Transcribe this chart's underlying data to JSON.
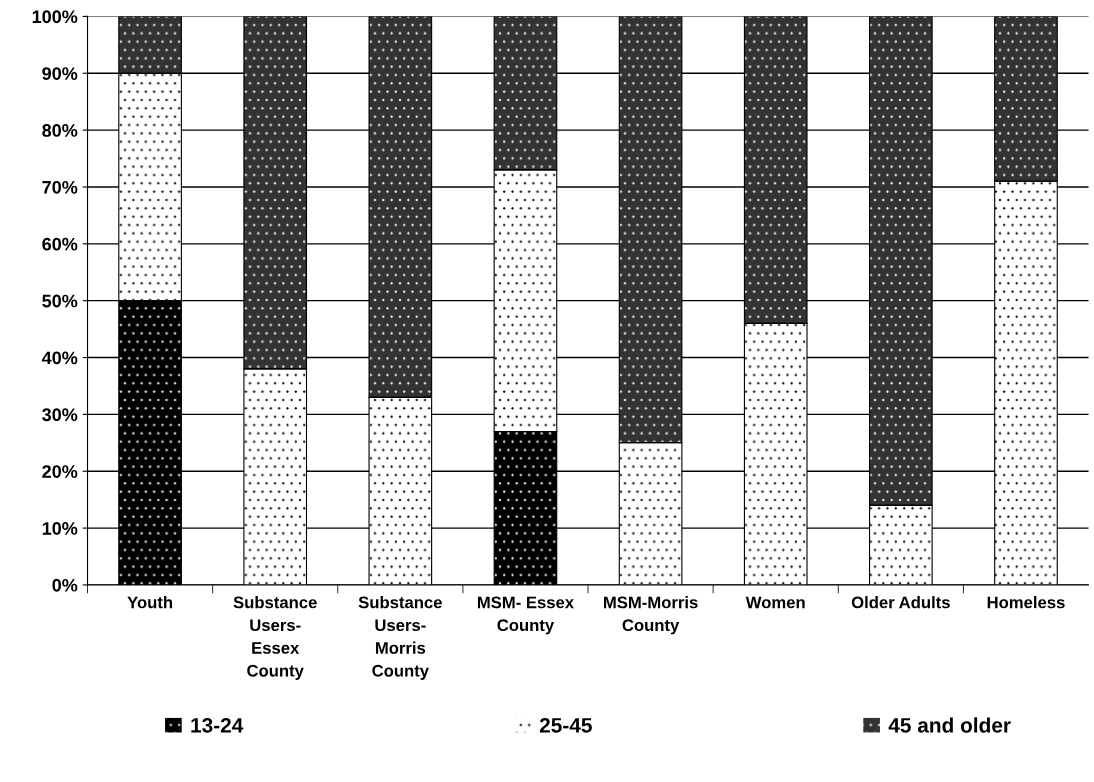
{
  "chart_data": {
    "type": "bar",
    "stacked": true,
    "categories": [
      "Youth",
      "Substance Users-Essex County",
      "Substance Users-Morris County",
      "MSM- Essex County",
      "MSM-Morris County",
      "Women",
      "Older Adults",
      "Homeless"
    ],
    "series": [
      {
        "name": "13-24",
        "color": "#000000",
        "values": [
          50,
          0,
          0,
          27,
          0,
          0,
          0,
          0
        ]
      },
      {
        "name": "25-45",
        "color": "#ffffff",
        "values": [
          40,
          38,
          33,
          46,
          25,
          46,
          14,
          71
        ]
      },
      {
        "name": "45 and older",
        "color": "#333333",
        "values": [
          10,
          62,
          67,
          27,
          75,
          54,
          86,
          29
        ]
      }
    ],
    "ylim": [
      0,
      100
    ],
    "yticks": [
      {
        "value": 0,
        "label": "0%"
      },
      {
        "value": 10,
        "label": "10%"
      },
      {
        "value": 20,
        "label": "20%"
      },
      {
        "value": 30,
        "label": "30%"
      },
      {
        "value": 40,
        "label": "40%"
      },
      {
        "value": 50,
        "label": "50%"
      },
      {
        "value": 60,
        "label": "60%"
      },
      {
        "value": 70,
        "label": "70%"
      },
      {
        "value": 80,
        "label": "80%"
      },
      {
        "value": 90,
        "label": "90%"
      },
      {
        "value": 100,
        "label": "100%"
      }
    ],
    "grid": "y",
    "legend": "bottom"
  }
}
